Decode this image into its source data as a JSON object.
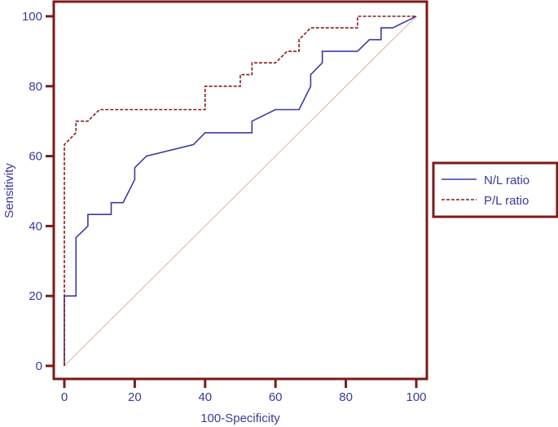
{
  "chart_data": {
    "type": "line",
    "xlabel": "100-Specificity",
    "ylabel": "Sensitivity",
    "xlim": [
      0,
      100
    ],
    "ylim": [
      0,
      100
    ],
    "x_ticks": [
      "0",
      "20",
      "40",
      "60",
      "80",
      "100"
    ],
    "y_ticks": [
      "0",
      "20",
      "40",
      "60",
      "80",
      "100"
    ],
    "legend_position": "right",
    "colors": {
      "frame": "#7a1a1a",
      "text": "#3a3a9a",
      "diagonal": "#e0b0a8"
    },
    "reference_line": {
      "x": [
        0,
        100
      ],
      "y": [
        0,
        100
      ]
    },
    "series": [
      {
        "name": "N/L ratio",
        "color": "#3a3aa8",
        "style": "solid",
        "x": [
          0,
          0,
          3.3,
          3.3,
          6.7,
          6.7,
          13.3,
          13.3,
          16.7,
          20,
          20,
          23.3,
          36.7,
          40,
          40,
          53.3,
          53.3,
          60,
          66.7,
          70,
          70,
          73.3,
          73.3,
          83.3,
          86.7,
          90,
          90,
          93.3,
          100
        ],
        "y": [
          0,
          20,
          20,
          36.7,
          40,
          43.3,
          43.3,
          46.7,
          46.7,
          53.3,
          56.7,
          60,
          63.3,
          66.7,
          66.7,
          66.7,
          70,
          73.3,
          73.3,
          80,
          83.3,
          86.7,
          90,
          90,
          93.3,
          93.3,
          96.7,
          96.7,
          100
        ]
      },
      {
        "name": "P/L ratio",
        "color": "#8b1a1a",
        "style": "dashed",
        "x": [
          0,
          0,
          3.3,
          3.3,
          6.7,
          10,
          40,
          40,
          50,
          50,
          53.3,
          53.3,
          60,
          63.3,
          66.7,
          66.7,
          70,
          83.3,
          83.3,
          100
        ],
        "y": [
          0,
          63.3,
          66.7,
          70,
          70,
          73.3,
          73.3,
          80,
          80,
          83.3,
          83.3,
          86.7,
          86.7,
          90,
          90,
          93.3,
          96.7,
          96.7,
          100,
          100
        ]
      }
    ]
  }
}
